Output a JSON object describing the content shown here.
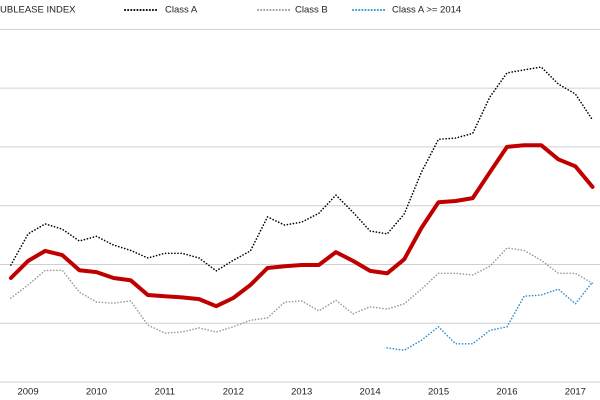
{
  "chart_data": {
    "type": "line",
    "x": [
      2008.75,
      2009,
      2009.25,
      2009.5,
      2009.75,
      2010,
      2010.25,
      2010.5,
      2010.75,
      2011,
      2011.25,
      2011.5,
      2011.75,
      2012,
      2012.25,
      2012.5,
      2012.75,
      2013,
      2013.25,
      2013.5,
      2013.75,
      2014,
      2014.25,
      2014.5,
      2014.75,
      2015,
      2015.25,
      2015.5,
      2015.75,
      2016,
      2016.25,
      2016.5,
      2016.75,
      2017,
      2017.25
    ],
    "series": [
      {
        "name": "UBLEASE INDEX",
        "color": "#c00000",
        "width": 4,
        "dash": false,
        "values": [
          1.77,
          2.06,
          2.23,
          2.16,
          1.9,
          1.87,
          1.77,
          1.73,
          1.48,
          1.46,
          1.44,
          1.41,
          1.29,
          1.43,
          1.65,
          1.94,
          1.97,
          1.99,
          1.99,
          2.21,
          2.06,
          1.89,
          1.85,
          2.09,
          2.62,
          3.06,
          3.08,
          3.13,
          3.57,
          4.0,
          4.03,
          4.03,
          3.79,
          3.67,
          3.32
        ]
      },
      {
        "name": "Class A",
        "color": "#000000",
        "width": 1.6,
        "dash": true,
        "values": [
          1.99,
          2.52,
          2.69,
          2.6,
          2.4,
          2.48,
          2.33,
          2.24,
          2.11,
          2.19,
          2.19,
          2.11,
          1.89,
          2.07,
          2.23,
          2.81,
          2.67,
          2.72,
          2.87,
          3.18,
          2.89,
          2.57,
          2.52,
          2.86,
          3.57,
          4.13,
          4.15,
          4.23,
          4.85,
          5.26,
          5.31,
          5.36,
          5.07,
          4.9,
          4.46
        ]
      },
      {
        "name": "Class B",
        "color": "#9a9a9a",
        "width": 1.6,
        "dash": true,
        "values": [
          1.43,
          1.65,
          1.9,
          1.9,
          1.53,
          1.36,
          1.34,
          1.38,
          0.97,
          0.83,
          0.85,
          0.92,
          0.85,
          0.94,
          1.05,
          1.09,
          1.36,
          1.38,
          1.21,
          1.39,
          1.16,
          1.28,
          1.24,
          1.33,
          1.58,
          1.85,
          1.85,
          1.82,
          1.97,
          2.28,
          2.24,
          2.07,
          1.85,
          1.85,
          1.68
        ]
      },
      {
        "name": "Class A >= 2014",
        "color": "#2e8fd0",
        "width": 1.6,
        "dash": true,
        "values": [
          null,
          null,
          null,
          null,
          null,
          null,
          null,
          null,
          null,
          null,
          null,
          null,
          null,
          null,
          null,
          null,
          null,
          null,
          null,
          null,
          null,
          null,
          0.58,
          0.54,
          0.71,
          0.94,
          0.65,
          0.65,
          0.88,
          0.94,
          1.46,
          1.48,
          1.58,
          1.33,
          1.7
        ]
      }
    ],
    "xlim": [
      2008.59,
      2017.36
    ],
    "xticks": [
      {
        "value": 2009,
        "label": "2009"
      },
      {
        "value": 2010,
        "label": "2010"
      },
      {
        "value": 2011,
        "label": "2011"
      },
      {
        "value": 2012,
        "label": "2012"
      },
      {
        "value": 2013,
        "label": "2013"
      },
      {
        "value": 2014,
        "label": "2014"
      },
      {
        "value": 2015,
        "label": "2015"
      },
      {
        "value": 2016,
        "label": "2016"
      },
      {
        "value": 2017,
        "label": "2017"
      }
    ],
    "ylim": [
      0,
      6.5
    ],
    "yticks": [
      0,
      1,
      2,
      3,
      4,
      5,
      6
    ],
    "grid": true
  }
}
